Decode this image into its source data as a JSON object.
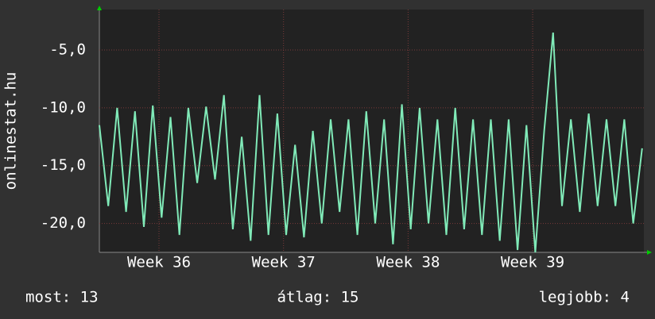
{
  "chart_data": {
    "type": "line",
    "y_label": "onlinestat.hu",
    "x": [
      0,
      0.5,
      1,
      1.5,
      2,
      2.5,
      3,
      3.5,
      4,
      4.5,
      5,
      5.5,
      6,
      6.5,
      7,
      7.5,
      8,
      8.5,
      9,
      9.5,
      10,
      10.5,
      11,
      11.5,
      12,
      12.5,
      13,
      13.5,
      14,
      14.5,
      15,
      15.5,
      16,
      16.5,
      17,
      17.5,
      18,
      18.5,
      19,
      19.5,
      20,
      20.5,
      21,
      21.5,
      22,
      22.5,
      23,
      23.5,
      24,
      24.5,
      25,
      25.5,
      26,
      26.5,
      27,
      27.5,
      28,
      28.5,
      29,
      29.5,
      30,
      30.5
    ],
    "series": [
      {
        "color": "#80eab8",
        "values": [
          -11.5,
          -18.5,
          -10,
          -19,
          -10.3,
          -20.3,
          -9.8,
          -19.5,
          -10.8,
          -21,
          -10,
          -16.5,
          -9.9,
          -16.2,
          -8.9,
          -20.5,
          -12.5,
          -21.5,
          -8.9,
          -21,
          -10.5,
          -21,
          -13.2,
          -21.2,
          -12,
          -20,
          -11,
          -19,
          -11,
          -21,
          -10.3,
          -20,
          -11,
          -21.8,
          -9.7,
          -20.5,
          -10,
          -20,
          -11,
          -21,
          -10,
          -20.5,
          -11,
          -21,
          -11,
          -21.5,
          -11,
          -22.3,
          -11.5,
          -22.5,
          -12,
          -3.5,
          -18.5,
          -11,
          -19,
          -10.5,
          -18.5,
          -11,
          -18.5,
          -11,
          -20,
          -13.5
        ]
      }
    ],
    "xlim": [
      0,
      30.6
    ],
    "xticks": [
      {
        "value": 3.35,
        "label": "Week 36"
      },
      {
        "value": 10.35,
        "label": "Week 37"
      },
      {
        "value": 17.35,
        "label": "Week 38"
      },
      {
        "value": 24.35,
        "label": "Week 39"
      }
    ],
    "ylim": [
      -22.5,
      -1.5
    ],
    "yticks": [
      {
        "value": -5,
        "label": "-5,0"
      },
      {
        "value": -10,
        "label": "-10,0"
      },
      {
        "value": -15,
        "label": "-15,0"
      },
      {
        "value": -20,
        "label": "-20,0"
      }
    ],
    "grid": true,
    "stats": [
      "most: 13",
      "átlag: 15",
      "legjobb: 4"
    ]
  }
}
